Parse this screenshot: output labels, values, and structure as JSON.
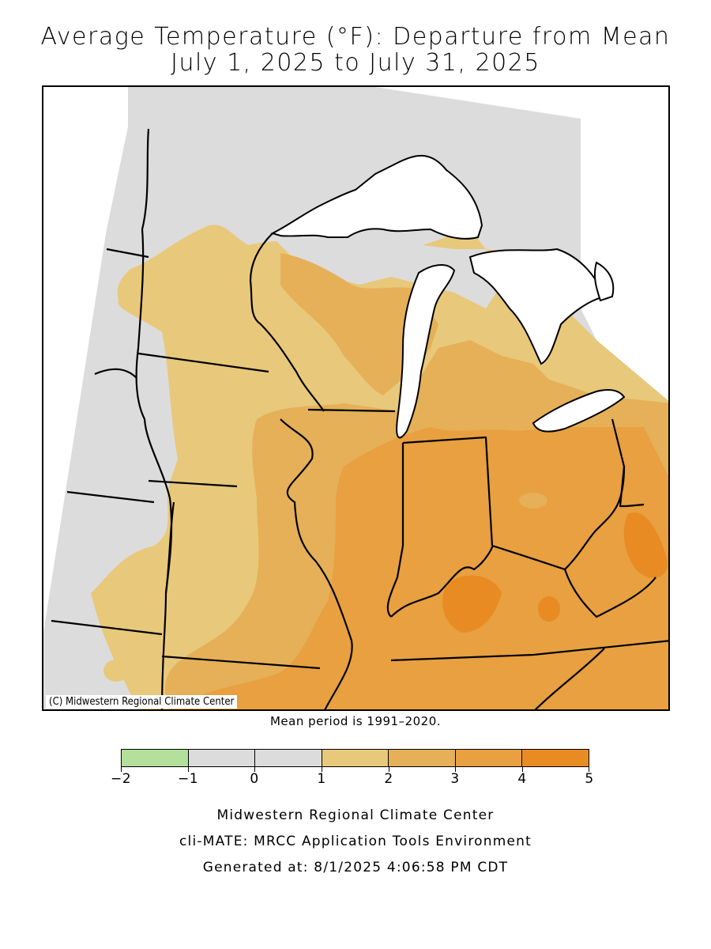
{
  "title_line1": "Average Temperature (°F): Departure from Mean",
  "title_line2": "July 1, 2025 to July 31, 2025",
  "copyright": "(C) Midwestern Regional Climate Center",
  "mean_period": "Mean period is 1991–2020.",
  "legend": {
    "ticks": [
      "−2",
      "−1",
      "0",
      "1",
      "2",
      "3",
      "4",
      "5"
    ],
    "bins": [
      {
        "range": [
          -2,
          -1
        ],
        "color": "#b3e09b"
      },
      {
        "range": [
          -1,
          0
        ],
        "color": "#dcdcdc"
      },
      {
        "range": [
          0,
          1
        ],
        "color": "#dcdcdc"
      },
      {
        "range": [
          1,
          2
        ],
        "color": "#e8c87a"
      },
      {
        "range": [
          2,
          3
        ],
        "color": "#e5b057"
      },
      {
        "range": [
          3,
          4
        ],
        "color": "#e8a040"
      },
      {
        "range": [
          4,
          5
        ],
        "color": "#e88b22"
      }
    ]
  },
  "footer": {
    "line1": "Midwestern Regional Climate Center",
    "line2": "cli-MATE: MRCC Application Tools Environment",
    "line3": "Generated at: 8/1/2025 4:06:58 PM CDT"
  },
  "colors": {
    "water": "#ffffff",
    "below_minus1": "#b3e09b",
    "near_normal": "#dcdcdc",
    "plus1_2": "#e8c87a",
    "plus2_3": "#e5b057",
    "plus3_4": "#e8a040",
    "plus4_5": "#e88b22",
    "boundary": "#000000"
  }
}
